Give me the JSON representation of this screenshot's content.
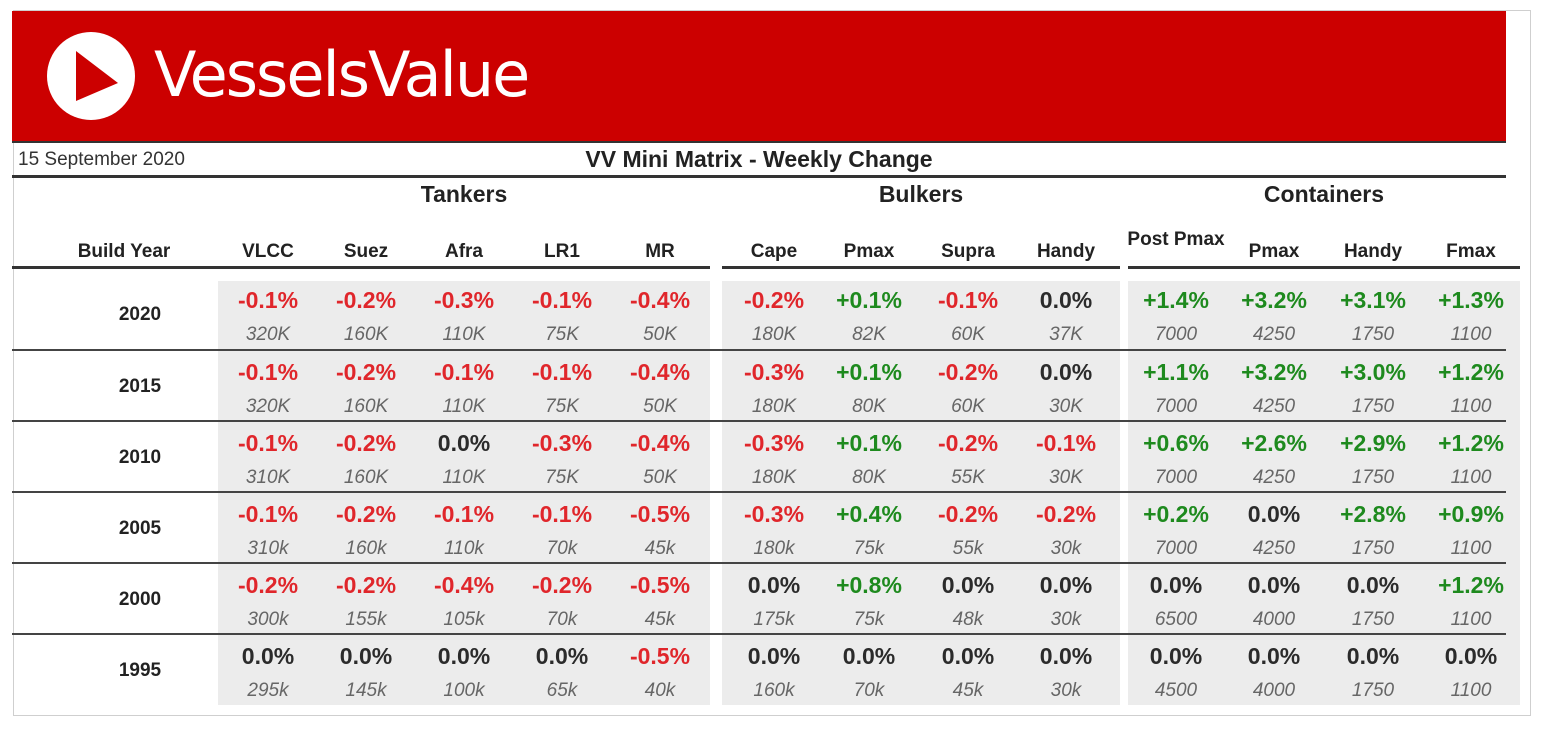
{
  "brand": {
    "name": "VesselsValue",
    "colors": {
      "banner": "#cc0000",
      "negative": "#e0262b",
      "positive": "#1e8a1e",
      "neutral": "#2b2b2b"
    }
  },
  "report": {
    "date": "15 September 2020",
    "title": "VV Mini Matrix - Weekly Change"
  },
  "groups": [
    "Tankers",
    "Bulkers",
    "Containers"
  ],
  "build_year_label": "Build Year",
  "columns": [
    "VLCC",
    "Suez",
    "Afra",
    "LR1",
    "MR",
    "Cape",
    "Pmax",
    "Supra",
    "Handy",
    "Post Pmax",
    "Pmax",
    "Handy",
    "Fmax"
  ],
  "rows": [
    {
      "year": "2020",
      "pct": [
        "-0.1%",
        "-0.2%",
        "-0.3%",
        "-0.1%",
        "-0.4%",
        "-0.2%",
        "+0.1%",
        "-0.1%",
        "0.0%",
        "+1.4%",
        "+3.2%",
        "+3.1%",
        "+1.3%"
      ],
      "size": [
        "320K",
        "160K",
        "110K",
        "75K",
        "50K",
        "180K",
        "82K",
        "60K",
        "37K",
        "7000",
        "4250",
        "1750",
        "1100"
      ]
    },
    {
      "year": "2015",
      "pct": [
        "-0.1%",
        "-0.2%",
        "-0.1%",
        "-0.1%",
        "-0.4%",
        "-0.3%",
        "+0.1%",
        "-0.2%",
        "0.0%",
        "+1.1%",
        "+3.2%",
        "+3.0%",
        "+1.2%"
      ],
      "size": [
        "320K",
        "160K",
        "110K",
        "75K",
        "50K",
        "180K",
        "80K",
        "60K",
        "30K",
        "7000",
        "4250",
        "1750",
        "1100"
      ]
    },
    {
      "year": "2010",
      "pct": [
        "-0.1%",
        "-0.2%",
        "0.0%",
        "-0.3%",
        "-0.4%",
        "-0.3%",
        "+0.1%",
        "-0.2%",
        "-0.1%",
        "+0.6%",
        "+2.6%",
        "+2.9%",
        "+1.2%"
      ],
      "size": [
        "310K",
        "160K",
        "110K",
        "75K",
        "50K",
        "180K",
        "80K",
        "55K",
        "30K",
        "7000",
        "4250",
        "1750",
        "1100"
      ]
    },
    {
      "year": "2005",
      "pct": [
        "-0.1%",
        "-0.2%",
        "-0.1%",
        "-0.1%",
        "-0.5%",
        "-0.3%",
        "+0.4%",
        "-0.2%",
        "-0.2%",
        "+0.2%",
        "0.0%",
        "+2.8%",
        "+0.9%"
      ],
      "size": [
        "310k",
        "160k",
        "110k",
        "70k",
        "45k",
        "180k",
        "75k",
        "55k",
        "30k",
        "7000",
        "4250",
        "1750",
        "1100"
      ]
    },
    {
      "year": "2000",
      "pct": [
        "-0.2%",
        "-0.2%",
        "-0.4%",
        "-0.2%",
        "-0.5%",
        "0.0%",
        "+0.8%",
        "0.0%",
        "0.0%",
        "0.0%",
        "0.0%",
        "0.0%",
        "+1.2%"
      ],
      "size": [
        "300k",
        "155k",
        "105k",
        "70k",
        "45k",
        "175k",
        "75k",
        "48k",
        "30k",
        "6500",
        "4000",
        "1750",
        "1100"
      ]
    },
    {
      "year": "1995",
      "pct": [
        "0.0%",
        "0.0%",
        "0.0%",
        "0.0%",
        "-0.5%",
        "0.0%",
        "0.0%",
        "0.0%",
        "0.0%",
        "0.0%",
        "0.0%",
        "0.0%",
        "0.0%"
      ],
      "size": [
        "295k",
        "145k",
        "100k",
        "65k",
        "40k",
        "160k",
        "70k",
        "45k",
        "30k",
        "4500",
        "4000",
        "1750",
        "1100"
      ]
    }
  ]
}
